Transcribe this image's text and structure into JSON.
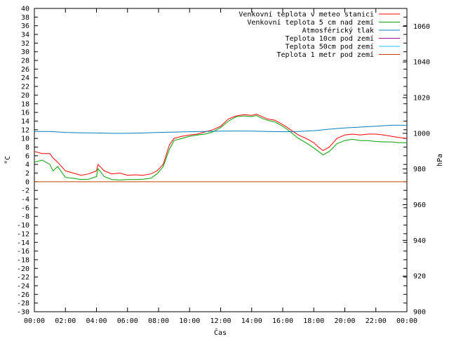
{
  "chart_data": {
    "type": "line",
    "xlabel": "Čas",
    "ylabel_left": "°C",
    "ylabel_right": "hPa",
    "x_ticks": [
      "00:00",
      "02:00",
      "04:00",
      "06:00",
      "08:00",
      "10:00",
      "12:00",
      "14:00",
      "16:00",
      "18:00",
      "20:00",
      "22:00",
      "00:00"
    ],
    "x_range": [
      0,
      24
    ],
    "ylim_left": [
      -30,
      40
    ],
    "y_step_left": 2,
    "ylim_right": [
      900,
      1070
    ],
    "y_ticks_right": [
      900,
      920,
      940,
      960,
      980,
      1000,
      1020,
      1040,
      1060
    ],
    "grid": false,
    "legend_position": "top-right",
    "series": [
      {
        "name": "Venkovní teplota v meteo stanici",
        "color": "#ff0000",
        "axis": "left",
        "x": [
          0,
          0.5,
          1,
          1.2,
          1.5,
          2,
          2.5,
          3,
          3.5,
          4,
          4.1,
          4.5,
          5,
          5.5,
          6,
          6.5,
          7,
          7.5,
          7.9,
          8.3,
          8.7,
          9,
          9.5,
          10,
          10.5,
          11,
          11.5,
          12,
          12.5,
          13,
          13.5,
          14,
          14.3,
          14.7,
          15,
          15.5,
          16,
          16.5,
          17,
          17.5,
          18,
          18.3,
          18.6,
          19,
          19.5,
          20,
          20.5,
          21,
          21.5,
          22,
          22.5,
          23,
          23.5,
          24
        ],
        "y": [
          7,
          6.5,
          6.5,
          5.5,
          4.5,
          2.5,
          2,
          1.5,
          1.8,
          2.5,
          4,
          2.5,
          1.8,
          2,
          1.5,
          1.6,
          1.5,
          1.8,
          2.5,
          4,
          8.5,
          10,
          10.5,
          10.8,
          11,
          11.5,
          12,
          12.8,
          14.5,
          15.2,
          15.5,
          15.3,
          15.6,
          15,
          14.5,
          14.2,
          13.2,
          12,
          10.8,
          10,
          9,
          8,
          7.2,
          8,
          10,
          10.8,
          11,
          10.8,
          11,
          11,
          10.8,
          10.5,
          10.2,
          10
        ]
      },
      {
        "name": "Venkovní teplota 5 cm nad zemí",
        "color": "#00a000",
        "axis": "left",
        "x": [
          0,
          0.5,
          1,
          1.2,
          1.5,
          2,
          2.5,
          3,
          3.5,
          4,
          4.1,
          4.5,
          5,
          5.5,
          6,
          6.5,
          7,
          7.5,
          7.9,
          8.3,
          8.7,
          9,
          9.5,
          10,
          10.5,
          11,
          11.5,
          12,
          12.5,
          13,
          13.5,
          14,
          14.3,
          14.7,
          15,
          15.5,
          16,
          16.5,
          17,
          17.5,
          18,
          18.3,
          18.6,
          19,
          19.5,
          20,
          20.5,
          21,
          21.5,
          22,
          22.5,
          23,
          23.5,
          24
        ],
        "y": [
          4.5,
          5,
          4,
          2.5,
          3.5,
          1,
          0.8,
          0.5,
          0.6,
          1.2,
          3,
          1.2,
          0.5,
          0.4,
          0.5,
          0.5,
          0.6,
          0.8,
          1.8,
          3.5,
          7.5,
          9.5,
          10,
          10.5,
          10.8,
          11,
          11.5,
          12.5,
          14,
          15,
          15.2,
          15,
          15.3,
          14.6,
          14.2,
          13.8,
          12.8,
          11.5,
          10,
          9,
          7.8,
          7,
          6.2,
          7,
          8.8,
          9.5,
          9.8,
          9.5,
          9.5,
          9.3,
          9.2,
          9.2,
          9,
          9
        ]
      },
      {
        "name": "Atmosférický tlak",
        "color": "#0080c0",
        "axis": "right",
        "x": [
          0,
          1,
          2,
          3,
          4,
          5,
          6,
          7,
          8,
          9,
          10,
          11,
          12,
          13,
          14,
          15,
          16,
          17,
          18,
          19,
          20,
          21,
          22,
          23,
          24
        ],
        "y": [
          1001,
          1001,
          1000.5,
          1000.3,
          1000.2,
          1000,
          1000,
          1000.2,
          1000.5,
          1000.7,
          1000.9,
          1001,
          1001.2,
          1001.3,
          1001.2,
          1001,
          1000.9,
          1001,
          1001.5,
          1002.3,
          1003,
          1003.5,
          1004,
          1004.5,
          1004.5
        ]
      },
      {
        "name": "Teplota 10cm pod zemí",
        "color": "#a000a0",
        "axis": "left",
        "x": [],
        "y": []
      },
      {
        "name": "Teplota 50cm pod zemí",
        "color": "#20c0ff",
        "axis": "left",
        "x": [],
        "y": []
      },
      {
        "name": "Teplota 1 metr pod zemí",
        "color": "#c04000",
        "axis": "left",
        "x": [
          0,
          24
        ],
        "y": [
          0,
          0
        ]
      }
    ]
  }
}
